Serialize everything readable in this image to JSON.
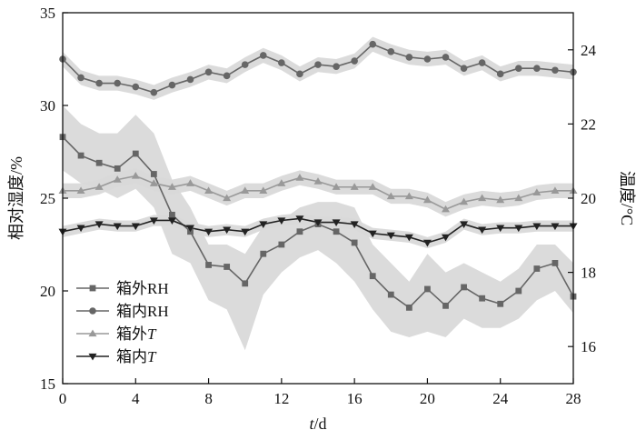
{
  "chart_data": {
    "type": "line",
    "xlabel": "t/d",
    "ylabel_left": "相对湿度/%",
    "ylabel_right": "温度/°C",
    "x": [
      0,
      1,
      2,
      3,
      4,
      5,
      6,
      7,
      8,
      9,
      10,
      11,
      12,
      13,
      14,
      15,
      16,
      17,
      18,
      19,
      20,
      21,
      22,
      23,
      24,
      25,
      26,
      27,
      28
    ],
    "x_ticks": [
      0,
      4,
      8,
      12,
      16,
      20,
      24,
      28
    ],
    "xlim": [
      0,
      28
    ],
    "ylim_left": [
      15,
      35
    ],
    "yticks_left": [
      15,
      20,
      25,
      30,
      35
    ],
    "ylim_right": [
      15,
      25
    ],
    "yticks_right": [
      16,
      18,
      20,
      22,
      24
    ],
    "grid": false,
    "legend_position": "bottom-left",
    "series": [
      {
        "name": "箱外RH",
        "marker": "square",
        "axis": "left",
        "color": "#666666",
        "values": [
          28.3,
          27.3,
          26.9,
          26.6,
          27.4,
          26.3,
          24.1,
          23.2,
          21.4,
          21.3,
          20.4,
          22.0,
          22.5,
          23.2,
          23.6,
          23.2,
          22.6,
          20.8,
          19.8,
          19.1,
          20.1,
          19.2,
          20.2,
          19.6,
          19.3,
          20.0,
          21.2,
          21.5,
          19.7
        ],
        "band_upper": [
          30.0,
          29.0,
          28.5,
          28.5,
          29.5,
          28.5,
          26.0,
          24.5,
          22.5,
          22.5,
          22.0,
          23.5,
          23.8,
          24.5,
          24.8,
          24.8,
          24.5,
          22.5,
          21.5,
          20.5,
          22.0,
          21.0,
          21.5,
          21.0,
          20.5,
          21.2,
          22.5,
          22.5,
          21.5
        ],
        "band_lower": [
          26.5,
          25.8,
          25.5,
          25.0,
          25.5,
          24.5,
          22.0,
          21.5,
          19.5,
          19.0,
          16.8,
          19.8,
          21.0,
          21.8,
          22.2,
          21.5,
          20.5,
          19.0,
          17.8,
          17.5,
          17.8,
          17.5,
          18.5,
          18.0,
          18.0,
          18.5,
          19.5,
          20.0,
          18.8
        ]
      },
      {
        "name": "箱内RH",
        "marker": "circle",
        "axis": "left",
        "color": "#666666",
        "values": [
          32.5,
          31.5,
          31.2,
          31.2,
          31.0,
          30.7,
          31.1,
          31.4,
          31.8,
          31.6,
          32.2,
          32.7,
          32.3,
          31.7,
          32.2,
          32.1,
          32.4,
          33.3,
          32.9,
          32.6,
          32.5,
          32.6,
          32.0,
          32.3,
          31.7,
          32.0,
          32.0,
          31.9,
          31.8
        ],
        "band_upper": [
          32.9,
          31.9,
          31.6,
          31.6,
          31.4,
          31.1,
          31.5,
          31.8,
          32.2,
          32.0,
          32.6,
          33.1,
          32.7,
          32.1,
          32.6,
          32.5,
          32.8,
          33.7,
          33.3,
          33.0,
          32.9,
          33.0,
          32.4,
          32.7,
          32.1,
          32.4,
          32.4,
          32.3,
          32.2
        ],
        "band_lower": [
          32.1,
          31.1,
          30.8,
          30.8,
          30.6,
          30.3,
          30.7,
          31.0,
          31.4,
          31.2,
          31.8,
          32.3,
          31.9,
          31.3,
          31.8,
          31.7,
          32.0,
          32.9,
          32.5,
          32.2,
          32.1,
          32.2,
          31.6,
          31.9,
          31.3,
          31.6,
          31.6,
          31.5,
          31.4
        ]
      },
      {
        "name": "箱外T",
        "marker": "triangle-up",
        "axis": "right",
        "color": "#999999",
        "values": [
          20.2,
          20.2,
          20.3,
          20.5,
          20.6,
          20.4,
          20.3,
          20.4,
          20.2,
          20.0,
          20.2,
          20.2,
          20.4,
          20.55,
          20.45,
          20.3,
          20.3,
          20.3,
          20.05,
          20.05,
          19.95,
          19.7,
          19.9,
          20.0,
          19.95,
          20.0,
          20.15,
          20.2,
          20.2
        ],
        "band_upper": [
          20.4,
          20.4,
          20.5,
          20.7,
          20.8,
          20.6,
          20.5,
          20.6,
          20.4,
          20.2,
          20.4,
          20.4,
          20.6,
          20.75,
          20.65,
          20.5,
          20.5,
          20.5,
          20.25,
          20.25,
          20.15,
          19.9,
          20.1,
          20.2,
          20.15,
          20.2,
          20.35,
          20.4,
          20.4
        ],
        "band_lower": [
          20.0,
          20.0,
          20.1,
          20.3,
          20.4,
          20.2,
          20.1,
          20.2,
          20.0,
          19.8,
          20.0,
          20.0,
          20.2,
          20.35,
          20.25,
          20.1,
          20.1,
          20.1,
          19.85,
          19.85,
          19.75,
          19.5,
          19.7,
          19.8,
          19.75,
          19.8,
          19.95,
          20.0,
          20.0
        ],
        "label_suffix": "T"
      },
      {
        "name": "箱内T",
        "marker": "triangle-down",
        "axis": "right",
        "color": "#222222",
        "values": [
          19.1,
          19.2,
          19.3,
          19.25,
          19.25,
          19.4,
          19.4,
          19.2,
          19.1,
          19.15,
          19.1,
          19.3,
          19.4,
          19.45,
          19.35,
          19.35,
          19.3,
          19.05,
          19.0,
          18.95,
          18.8,
          18.95,
          19.3,
          19.15,
          19.2,
          19.2,
          19.25,
          19.25,
          19.25
        ],
        "band_upper": [
          19.25,
          19.35,
          19.45,
          19.4,
          19.4,
          19.55,
          19.55,
          19.35,
          19.25,
          19.3,
          19.25,
          19.45,
          19.55,
          19.6,
          19.5,
          19.5,
          19.45,
          19.2,
          19.15,
          19.1,
          18.95,
          19.1,
          19.45,
          19.3,
          19.35,
          19.35,
          19.4,
          19.4,
          19.4
        ],
        "band_lower": [
          18.95,
          19.05,
          19.15,
          19.1,
          19.1,
          19.25,
          19.25,
          19.05,
          18.95,
          19.0,
          18.95,
          19.15,
          19.25,
          19.3,
          19.2,
          19.2,
          19.15,
          18.9,
          18.85,
          18.8,
          18.65,
          18.8,
          19.15,
          19.0,
          19.05,
          19.05,
          19.1,
          19.1,
          19.1
        ],
        "label_suffix": "T"
      }
    ],
    "legend": [
      {
        "prefix": "箱外",
        "suffix": "RH",
        "italic": false
      },
      {
        "prefix": "箱内",
        "suffix": "RH",
        "italic": false
      },
      {
        "prefix": "箱外",
        "suffix": "T",
        "italic": true
      },
      {
        "prefix": "箱内",
        "suffix": "T",
        "italic": true
      }
    ],
    "band_color": "#d9d9d9"
  }
}
